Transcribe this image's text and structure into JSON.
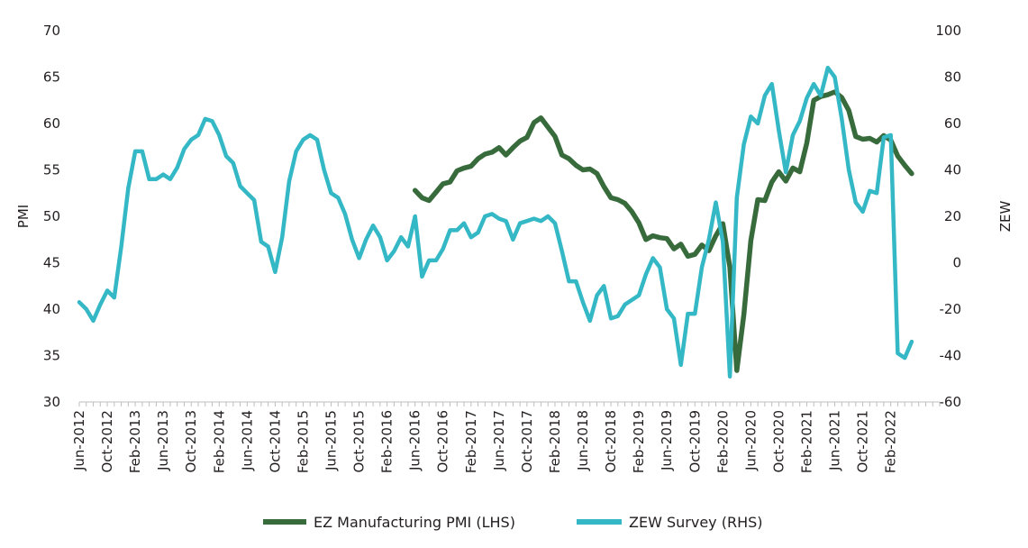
{
  "chart_data": {
    "type": "line",
    "title": "",
    "colors": {
      "pmi": "#386b3b",
      "zew": "#35b8c6",
      "axis": "#bfbfbf",
      "text": "#231f20"
    },
    "x": {
      "start": "Jun-2012",
      "end": "Sep-2022",
      "tick_labels": [
        "Jun-2012",
        "Oct-2012",
        "Feb-2013",
        "Jun-2013",
        "Oct-2013",
        "Feb-2014",
        "Jun-2014",
        "Oct-2014",
        "Feb-2015",
        "Jun-2015",
        "Oct-2015",
        "Feb-2016",
        "Jun-2016",
        "Oct-2016",
        "Feb-2017",
        "Jun-2017",
        "Oct-2017",
        "Feb-2018",
        "Jun-2018",
        "Oct-2018",
        "Feb-2019",
        "Jun-2019",
        "Oct-2019",
        "Feb-2020",
        "Jun-2020",
        "Oct-2020",
        "Feb-2021",
        "Jun-2021",
        "Oct-2021",
        "Feb-2022"
      ]
    },
    "y_left": {
      "label": "PMI",
      "ylim": [
        30,
        70
      ],
      "ticks": [
        30,
        35,
        40,
        45,
        50,
        55,
        60,
        65,
        70
      ]
    },
    "y_right": {
      "label": "ZEW",
      "ylim": [
        -60,
        100
      ],
      "ticks": [
        -60,
        -40,
        -20,
        0,
        20,
        40,
        60,
        80,
        100
      ]
    },
    "series": [
      {
        "name": "EZ Manufacturing PMI (LHS)",
        "axis": "left",
        "start": "Jun-2016",
        "values": [
          52.8,
          52.0,
          51.7,
          52.6,
          53.5,
          53.7,
          54.9,
          55.2,
          55.4,
          56.2,
          56.7,
          56.9,
          57.4,
          56.6,
          57.4,
          58.1,
          58.5,
          60.1,
          60.6,
          59.6,
          58.6,
          56.6,
          56.2,
          55.5,
          55.0,
          55.1,
          54.6,
          53.2,
          52.0,
          51.8,
          51.4,
          50.5,
          49.3,
          47.5,
          47.9,
          47.7,
          47.6,
          46.5,
          47.0,
          45.7,
          45.9,
          46.9,
          46.3,
          47.9,
          49.2,
          44.5,
          33.4,
          39.4,
          47.4,
          51.8,
          51.7,
          53.7,
          54.8,
          53.8,
          55.2,
          54.8,
          57.9,
          62.5,
          62.9,
          63.1,
          63.4,
          62.8,
          61.4,
          58.6,
          58.3,
          58.4,
          58.0,
          58.7,
          58.2,
          56.5,
          55.5,
          54.6
        ]
      },
      {
        "name": "ZEW Survey (RHS)",
        "axis": "right",
        "start": "Jun-2012",
        "values": [
          -17,
          -20,
          -25,
          -18,
          -12,
          -15,
          7,
          32,
          48,
          48,
          36,
          36,
          38,
          36,
          41,
          49,
          53,
          55,
          62,
          61,
          55,
          46,
          43,
          33,
          30,
          27,
          9,
          7,
          -4,
          11,
          35,
          48,
          53,
          55,
          53,
          40,
          30,
          28,
          21,
          10,
          2,
          10,
          16,
          11,
          1,
          5,
          11,
          7,
          20,
          -6,
          1,
          1,
          6,
          14,
          14,
          17,
          11,
          13,
          20,
          21,
          19,
          18,
          10,
          17,
          18,
          19,
          18,
          20,
          17,
          5,
          -8,
          -8,
          -17,
          -25,
          -14,
          -10,
          -24,
          -23,
          -18,
          -16,
          -14,
          -5,
          2,
          -2,
          -20,
          -24,
          -44,
          -22,
          -22,
          -2,
          10,
          26,
          9,
          -49,
          28,
          51,
          63,
          60,
          72,
          77,
          57,
          39,
          55,
          61,
          71,
          77,
          72,
          84,
          80,
          62,
          40,
          26,
          22,
          31,
          30,
          54,
          55,
          -39,
          -41,
          -34
        ]
      }
    ],
    "legend": {
      "position": "bottom-center"
    }
  }
}
